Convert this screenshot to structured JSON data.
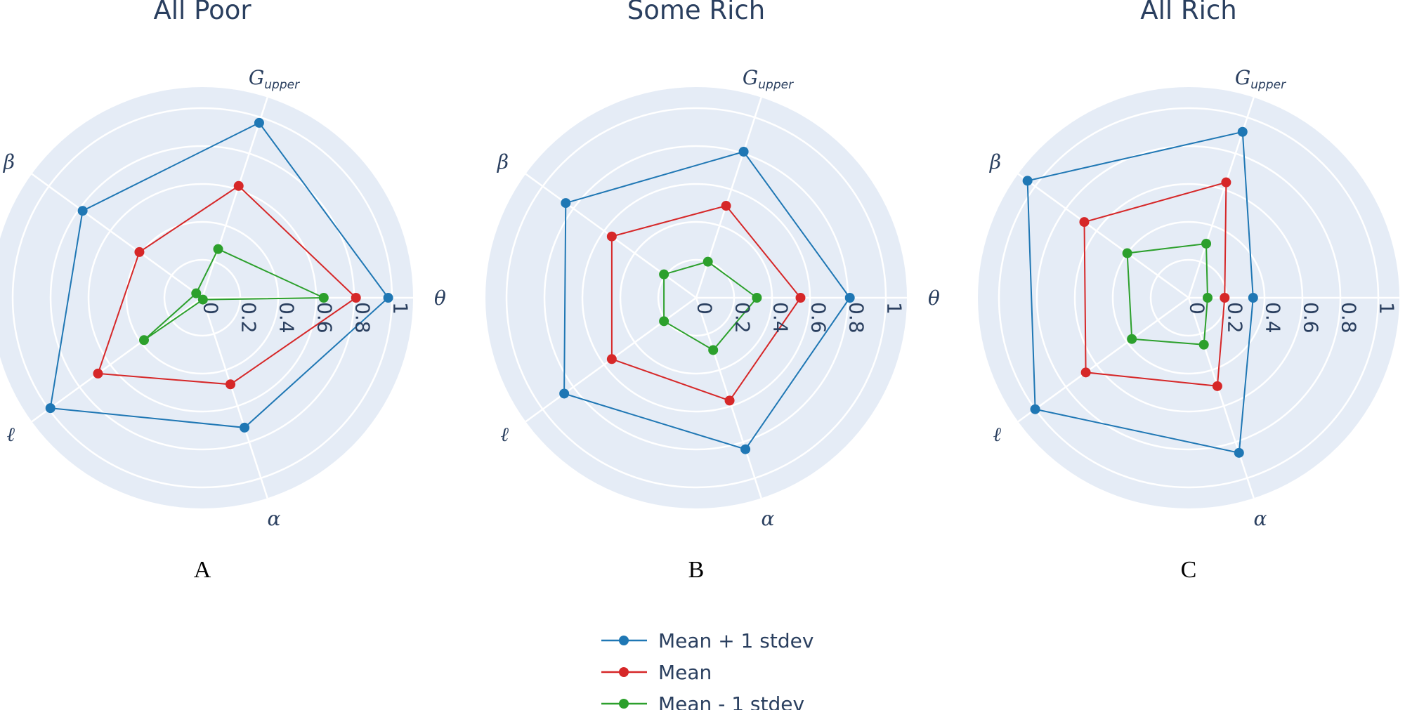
{
  "chart_data": [
    {
      "type": "radar",
      "title": "All Poor",
      "panel_label": "A",
      "radial_range": [
        0,
        1
      ],
      "tick_labels": [
        "0",
        "0.2",
        "0.4",
        "0.6",
        "0.8",
        "1"
      ],
      "axes": [
        "θ",
        "G_upper",
        "β",
        "ℓ",
        "α"
      ],
      "series": [
        {
          "name": "Mean + 1 stdev",
          "values": [
            0.98,
            0.97,
            0.78,
            0.99,
            0.72
          ]
        },
        {
          "name": "Mean",
          "values": [
            0.81,
            0.62,
            0.41,
            0.68,
            0.48
          ]
        },
        {
          "name": "Mean - 1 stdev",
          "values": [
            0.64,
            0.27,
            0.04,
            0.38,
            0.01
          ]
        }
      ]
    },
    {
      "type": "radar",
      "title": "Some Rich",
      "panel_label": "B",
      "radial_range": [
        0,
        1
      ],
      "tick_labels": [
        "0",
        "0.2",
        "0.4",
        "0.6",
        "0.8",
        "1"
      ],
      "axes": [
        "θ",
        "G_upper",
        "β",
        "ℓ",
        "α"
      ],
      "series": [
        {
          "name": "Mean + 1 stdev",
          "values": [
            0.81,
            0.81,
            0.85,
            0.86,
            0.84
          ]
        },
        {
          "name": "Mean",
          "values": [
            0.55,
            0.51,
            0.55,
            0.55,
            0.57
          ]
        },
        {
          "name": "Mean - 1 stdev",
          "values": [
            0.32,
            0.2,
            0.21,
            0.21,
            0.29
          ]
        }
      ]
    },
    {
      "type": "radar",
      "title": "All Rich",
      "panel_label": "C",
      "radial_range": [
        0,
        1
      ],
      "tick_labels": [
        "0",
        "0.2",
        "0.4",
        "0.6",
        "0.8",
        "1"
      ],
      "axes": [
        "θ",
        "G_upper",
        "β",
        "ℓ",
        "α"
      ],
      "series": [
        {
          "name": "Mean + 1 stdev",
          "values": [
            0.34,
            0.92,
            1.05,
            1.0,
            0.86
          ]
        },
        {
          "name": "Mean",
          "values": [
            0.19,
            0.64,
            0.68,
            0.67,
            0.49
          ]
        },
        {
          "name": "Mean - 1 stdev",
          "values": [
            0.1,
            0.3,
            0.4,
            0.37,
            0.26
          ]
        }
      ]
    }
  ],
  "legend": {
    "placement": "bottom-center",
    "items": [
      {
        "label": "Mean + 1 stdev",
        "color": "#1f77b4"
      },
      {
        "label": "Mean",
        "color": "#d62728"
      },
      {
        "label": "Mean - 1 stdev",
        "color": "#2ca02c"
      }
    ]
  },
  "colors": {
    "plot_bg": "#e5ecf6",
    "grid": "#ffffff",
    "text": "#2a3f5f"
  }
}
